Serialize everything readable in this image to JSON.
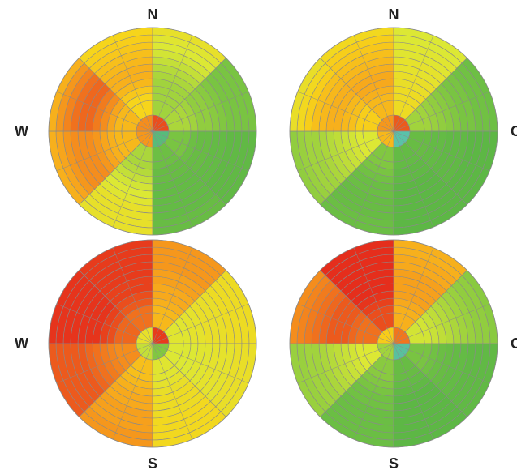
{
  "chart_data": [
    {
      "type": "heatmap",
      "subtype": "polar",
      "compass_labels": {
        "north": "N",
        "west": "W",
        "east": "",
        "south": ""
      },
      "sectors": 8,
      "rings": 10,
      "center_sectors": 4,
      "center_ring_values": [
        0.08,
        0.92,
        0.22,
        0.2
      ],
      "sector_values": [
        [
          0.62,
          0.62,
          0.62,
          0.6,
          0.58,
          0.55,
          0.52,
          0.5,
          0.48,
          0.45
        ],
        [
          0.6,
          0.62,
          0.66,
          0.66,
          0.68,
          0.7,
          0.72,
          0.72,
          0.72,
          0.72
        ],
        [
          0.72,
          0.75,
          0.78,
          0.78,
          0.8,
          0.8,
          0.82,
          0.82,
          0.82,
          0.82
        ],
        [
          0.75,
          0.78,
          0.78,
          0.8,
          0.8,
          0.8,
          0.8,
          0.8,
          0.78,
          0.78
        ],
        [
          0.6,
          0.58,
          0.55,
          0.52,
          0.5,
          0.48,
          0.45,
          0.45,
          0.45,
          0.45
        ],
        [
          0.3,
          0.28,
          0.25,
          0.22,
          0.2,
          0.2,
          0.2,
          0.22,
          0.25,
          0.28
        ],
        [
          0.3,
          0.25,
          0.2,
          0.16,
          0.12,
          0.12,
          0.14,
          0.18,
          0.22,
          0.28
        ],
        [
          0.38,
          0.34,
          0.3,
          0.28,
          0.28,
          0.3,
          0.32,
          0.34,
          0.36,
          0.38
        ]
      ]
    },
    {
      "type": "heatmap",
      "subtype": "polar",
      "compass_labels": {
        "north": "N",
        "west": "",
        "east": "O",
        "south": ""
      },
      "sectors": 8,
      "rings": 10,
      "center_sectors": 4,
      "center_ring_values": [
        0.1,
        0.96,
        0.3,
        0.22
      ],
      "sector_values": [
        [
          0.42,
          0.42,
          0.44,
          0.44,
          0.46,
          0.46,
          0.48,
          0.48,
          0.5,
          0.5
        ],
        [
          0.62,
          0.64,
          0.66,
          0.68,
          0.7,
          0.72,
          0.72,
          0.74,
          0.74,
          0.75
        ],
        [
          0.78,
          0.8,
          0.8,
          0.82,
          0.82,
          0.82,
          0.84,
          0.84,
          0.84,
          0.84
        ],
        [
          0.8,
          0.82,
          0.82,
          0.84,
          0.84,
          0.84,
          0.84,
          0.84,
          0.84,
          0.84
        ],
        [
          0.7,
          0.72,
          0.74,
          0.76,
          0.76,
          0.78,
          0.78,
          0.78,
          0.76,
          0.76
        ],
        [
          0.5,
          0.52,
          0.54,
          0.56,
          0.58,
          0.6,
          0.62,
          0.62,
          0.64,
          0.66
        ],
        [
          0.36,
          0.32,
          0.3,
          0.28,
          0.28,
          0.3,
          0.32,
          0.36,
          0.4,
          0.44
        ],
        [
          0.3,
          0.28,
          0.26,
          0.26,
          0.28,
          0.3,
          0.32,
          0.34,
          0.36,
          0.4
        ]
      ]
    },
    {
      "type": "heatmap",
      "subtype": "polar",
      "compass_labels": {
        "north": "",
        "west": "W",
        "east": "",
        "south": "S"
      },
      "sectors": 8,
      "rings": 10,
      "center_sectors": 4,
      "center_ring_values": [
        0.05,
        0.7,
        0.55,
        0.45
      ],
      "sector_values": [
        [
          0.3,
          0.28,
          0.26,
          0.26,
          0.24,
          0.24,
          0.22,
          0.22,
          0.22,
          0.22
        ],
        [
          0.48,
          0.46,
          0.46,
          0.44,
          0.44,
          0.44,
          0.42,
          0.42,
          0.42,
          0.42
        ],
        [
          0.5,
          0.5,
          0.48,
          0.48,
          0.46,
          0.46,
          0.46,
          0.44,
          0.44,
          0.44
        ],
        [
          0.48,
          0.46,
          0.44,
          0.42,
          0.42,
          0.42,
          0.4,
          0.4,
          0.4,
          0.4
        ],
        [
          0.32,
          0.3,
          0.28,
          0.26,
          0.26,
          0.24,
          0.24,
          0.24,
          0.22,
          0.22
        ],
        [
          0.2,
          0.18,
          0.16,
          0.14,
          0.12,
          0.1,
          0.1,
          0.1,
          0.1,
          0.1
        ],
        [
          0.12,
          0.08,
          0.06,
          0.04,
          0.04,
          0.04,
          0.04,
          0.04,
          0.04,
          0.04
        ],
        [
          0.14,
          0.1,
          0.08,
          0.06,
          0.06,
          0.05,
          0.05,
          0.05,
          0.05,
          0.05
        ]
      ]
    },
    {
      "type": "heatmap",
      "subtype": "polar",
      "compass_labels": {
        "north": "",
        "west": "",
        "east": "O",
        "south": "S"
      },
      "sectors": 8,
      "rings": 10,
      "center_sectors": 4,
      "center_ring_values": [
        0.15,
        0.95,
        0.62,
        0.35
      ],
      "sector_values": [
        [
          0.28,
          0.26,
          0.24,
          0.24,
          0.24,
          0.24,
          0.26,
          0.26,
          0.28,
          0.28
        ],
        [
          0.52,
          0.54,
          0.56,
          0.58,
          0.6,
          0.62,
          0.64,
          0.66,
          0.66,
          0.68
        ],
        [
          0.72,
          0.74,
          0.76,
          0.78,
          0.8,
          0.8,
          0.82,
          0.82,
          0.82,
          0.82
        ],
        [
          0.78,
          0.8,
          0.82,
          0.84,
          0.84,
          0.84,
          0.84,
          0.84,
          0.84,
          0.84
        ],
        [
          0.68,
          0.7,
          0.72,
          0.74,
          0.74,
          0.76,
          0.76,
          0.76,
          0.76,
          0.76
        ],
        [
          0.5,
          0.52,
          0.54,
          0.56,
          0.58,
          0.6,
          0.62,
          0.62,
          0.64,
          0.64
        ],
        [
          0.14,
          0.12,
          0.1,
          0.1,
          0.1,
          0.12,
          0.14,
          0.16,
          0.18,
          0.2
        ],
        [
          0.08,
          0.06,
          0.04,
          0.03,
          0.03,
          0.03,
          0.03,
          0.03,
          0.03,
          0.03
        ]
      ]
    }
  ],
  "colors": {
    "scale": [
      "#e21b1b",
      "#ef6a1e",
      "#f7a51c",
      "#f7d41a",
      "#dce834",
      "#9fd23d",
      "#6dbf44",
      "#57b446",
      "#5bc8d8"
    ],
    "grid_line": "#8a8a8a",
    "label": "#222222"
  }
}
